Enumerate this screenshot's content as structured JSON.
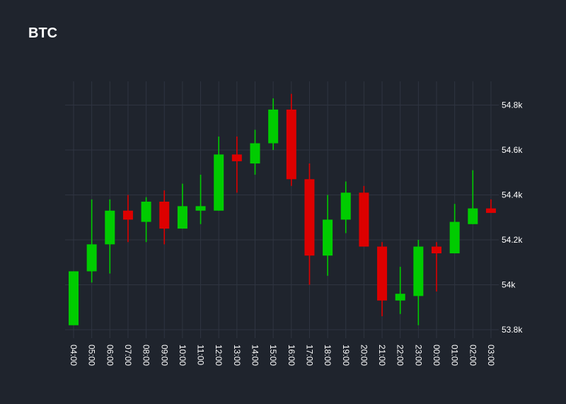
{
  "chart_data": {
    "type": "candlestick",
    "title": "BTC",
    "xlabel": "",
    "ylabel": "",
    "ylim": [
      53.78,
      54.92
    ],
    "yticks": [
      53.8,
      54.0,
      54.2,
      54.4,
      54.6,
      54.8
    ],
    "ytick_labels": [
      "53.8k",
      "54k",
      "54.2k",
      "54.4k",
      "54.6k",
      "54.8k"
    ],
    "y_axis_side": "right",
    "grid": true,
    "colors": {
      "up": "#00cc00",
      "down": "#dd0000",
      "grid": "#2f3541",
      "background": "#1f242d",
      "text": "#ffffff"
    },
    "categories": [
      "04:00",
      "05:00",
      "06:00",
      "07:00",
      "08:00",
      "09:00",
      "10:00",
      "11:00",
      "12:00",
      "13:00",
      "14:00",
      "15:00",
      "16:00",
      "17:00",
      "18:00",
      "19:00",
      "20:00",
      "21:00",
      "22:00",
      "23:00",
      "00:00",
      "01:00",
      "02:00",
      "03:00"
    ],
    "open": [
      53.82,
      54.06,
      54.18,
      54.33,
      54.28,
      54.37,
      54.25,
      54.33,
      54.33,
      54.58,
      54.54,
      54.63,
      54.78,
      54.47,
      54.13,
      54.29,
      54.41,
      54.17,
      53.93,
      53.95,
      54.17,
      54.14,
      54.27,
      54.34
    ],
    "high": [
      54.06,
      54.38,
      54.38,
      54.4,
      54.39,
      54.42,
      54.45,
      54.49,
      54.66,
      54.66,
      54.69,
      54.83,
      54.85,
      54.54,
      54.4,
      54.46,
      54.44,
      54.19,
      54.08,
      54.2,
      54.19,
      54.36,
      54.51,
      54.38
    ],
    "low": [
      53.82,
      54.01,
      54.05,
      54.19,
      54.19,
      54.18,
      54.25,
      54.27,
      54.33,
      54.41,
      54.49,
      54.6,
      54.44,
      54.0,
      54.04,
      54.23,
      54.17,
      53.86,
      53.87,
      53.82,
      53.97,
      54.14,
      54.27,
      54.32
    ],
    "close": [
      54.06,
      54.18,
      54.33,
      54.29,
      54.37,
      54.25,
      54.35,
      54.35,
      54.58,
      54.55,
      54.63,
      54.78,
      54.47,
      54.13,
      54.29,
      54.41,
      54.17,
      53.93,
      53.96,
      54.17,
      54.14,
      54.28,
      54.34,
      54.32
    ]
  }
}
